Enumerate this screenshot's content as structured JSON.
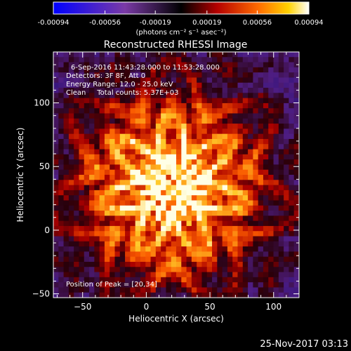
{
  "colorbar": {
    "tick_labels": [
      "-0.00094",
      "-0.00056",
      "-0.00019",
      "0.00019",
      "0.00056",
      "0.00094"
    ],
    "tick_values": [
      -0.00094,
      -0.00056,
      -0.00019,
      0.00019,
      0.00056,
      0.00094
    ],
    "range": [
      -0.00094,
      0.00094
    ],
    "units_label": "(photons cm⁻² s⁻¹ asec⁻²)",
    "colors": [
      "#0000ff",
      "#7a3aa6",
      "#000000",
      "#b40000",
      "#ff6a00",
      "#ffd200",
      "#ffffff"
    ]
  },
  "chart_data": {
    "type": "heatmap",
    "title": "Reconstructed RHESSI Image",
    "xlabel": "Heliocentric X (arcsec)",
    "ylabel": "Heliocentric Y (arcsec)",
    "xlim": [
      -73,
      120
    ],
    "ylim": [
      -53,
      140
    ],
    "xticks": [
      -50,
      0,
      50,
      100
    ],
    "yticks": [
      -50,
      0,
      50,
      100
    ],
    "xtick_labels": [
      "−50",
      "0",
      "50",
      "100"
    ],
    "ytick_labels": [
      "−50",
      "0",
      "50",
      "100"
    ],
    "peak": [
      20,
      34
    ],
    "info_lines": [
      "6-Sep-2016 11:43:28.000 to 11:53:28.000",
      "Detectors: 3F 8F, Att 0",
      "Energy Range: 12.0 - 25.0 keV",
      "Clean     Total counts: 5.37E+03"
    ],
    "peak_label": "Position of Peak = [20,34]"
  },
  "footer": {
    "timestamp": "25-Nov-2017 03:13"
  }
}
